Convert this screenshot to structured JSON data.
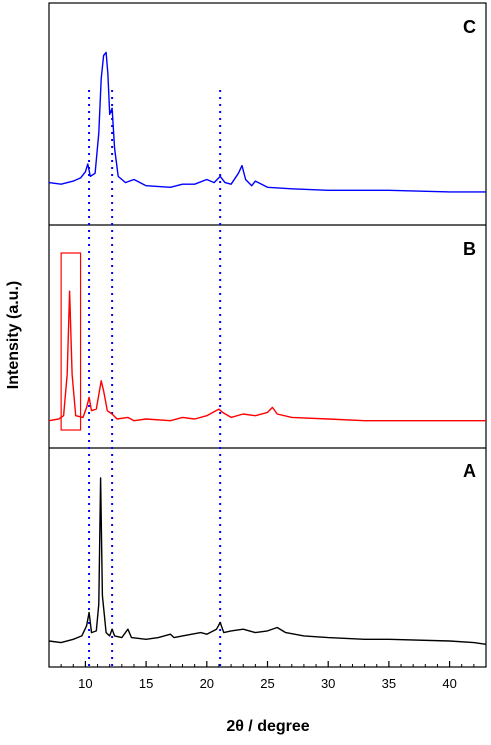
{
  "chart_data": {
    "type": "line",
    "xlabel": "2θ / degree",
    "ylabel": "Intensity (a.u.)",
    "xlim": [
      7,
      43
    ],
    "xticks": [
      10,
      15,
      20,
      25,
      30,
      35,
      40
    ],
    "xtick_labels": [
      "10",
      "15",
      "20",
      "25",
      "30",
      "35",
      "40"
    ],
    "reference_lines_x": [
      10.3,
      12.2,
      21.1
    ],
    "panels": [
      {
        "label": "C",
        "color": "#0000ff",
        "ylim": [
          0,
          100
        ],
        "points": [
          [
            7,
            8
          ],
          [
            8,
            7
          ],
          [
            9,
            9
          ],
          [
            9.6,
            11
          ],
          [
            10.0,
            15
          ],
          [
            10.2,
            20
          ],
          [
            10.4,
            12
          ],
          [
            10.8,
            14
          ],
          [
            11.1,
            40
          ],
          [
            11.3,
            75
          ],
          [
            11.5,
            90
          ],
          [
            11.7,
            92
          ],
          [
            11.85,
            78
          ],
          [
            12.0,
            52
          ],
          [
            12.2,
            56
          ],
          [
            12.4,
            30
          ],
          [
            12.7,
            12
          ],
          [
            13.3,
            8
          ],
          [
            14,
            10
          ],
          [
            15,
            6
          ],
          [
            17,
            5
          ],
          [
            18,
            7
          ],
          [
            19,
            7
          ],
          [
            20,
            10
          ],
          [
            20.6,
            8
          ],
          [
            21.1,
            12
          ],
          [
            21.5,
            8
          ],
          [
            22,
            7
          ],
          [
            22.6,
            14
          ],
          [
            22.9,
            19
          ],
          [
            23.2,
            10
          ],
          [
            23.7,
            6
          ],
          [
            24,
            9
          ],
          [
            25,
            5
          ],
          [
            27,
            4
          ],
          [
            30,
            3
          ],
          [
            35,
            3
          ],
          [
            40,
            2
          ],
          [
            43,
            2
          ]
        ]
      },
      {
        "label": "B",
        "color": "#ff0000",
        "ylim": [
          0,
          100
        ],
        "points": [
          [
            7,
            2
          ],
          [
            7.8,
            3
          ],
          [
            8.2,
            5
          ],
          [
            8.5,
            30
          ],
          [
            8.7,
            80
          ],
          [
            8.9,
            30
          ],
          [
            9.2,
            5
          ],
          [
            9.8,
            4
          ],
          [
            10.1,
            10
          ],
          [
            10.3,
            16
          ],
          [
            10.5,
            8
          ],
          [
            10.9,
            9
          ],
          [
            11.3,
            26
          ],
          [
            11.5,
            20
          ],
          [
            11.8,
            8
          ],
          [
            12.2,
            6
          ],
          [
            12.6,
            3
          ],
          [
            13.5,
            4
          ],
          [
            14,
            2
          ],
          [
            15,
            3
          ],
          [
            17,
            2
          ],
          [
            18,
            4
          ],
          [
            19,
            3
          ],
          [
            20,
            5
          ],
          [
            21,
            9
          ],
          [
            21.3,
            7
          ],
          [
            22,
            4
          ],
          [
            23,
            6
          ],
          [
            24,
            5
          ],
          [
            25,
            7
          ],
          [
            25.4,
            10
          ],
          [
            25.8,
            6
          ],
          [
            27,
            4
          ],
          [
            30,
            3
          ],
          [
            33,
            2
          ],
          [
            35,
            2
          ],
          [
            40,
            2
          ],
          [
            43,
            2
          ]
        ]
      },
      {
        "label": "A",
        "color": "#000000",
        "ylim": [
          0,
          100
        ],
        "points": [
          [
            7,
            3
          ],
          [
            8,
            2
          ],
          [
            9,
            4
          ],
          [
            9.7,
            6
          ],
          [
            10.1,
            12
          ],
          [
            10.3,
            20
          ],
          [
            10.5,
            8
          ],
          [
            10.9,
            9
          ],
          [
            11.1,
            25
          ],
          [
            11.25,
            100
          ],
          [
            11.4,
            30
          ],
          [
            11.7,
            8
          ],
          [
            12.0,
            6
          ],
          [
            12.2,
            10
          ],
          [
            12.4,
            6
          ],
          [
            13.0,
            5
          ],
          [
            13.5,
            10
          ],
          [
            13.8,
            5
          ],
          [
            15,
            4
          ],
          [
            16,
            5
          ],
          [
            17,
            7
          ],
          [
            17.3,
            5
          ],
          [
            18,
            6
          ],
          [
            19.5,
            8
          ],
          [
            20,
            7
          ],
          [
            20.8,
            10
          ],
          [
            21.1,
            14
          ],
          [
            21.4,
            8
          ],
          [
            22,
            9
          ],
          [
            23,
            10
          ],
          [
            24,
            8
          ],
          [
            25,
            9
          ],
          [
            25.8,
            11
          ],
          [
            26.5,
            8
          ],
          [
            28,
            6
          ],
          [
            30,
            5
          ],
          [
            33,
            4
          ],
          [
            35,
            4
          ],
          [
            40,
            3
          ],
          [
            42,
            2
          ],
          [
            43,
            1
          ]
        ]
      }
    ],
    "inset_box": {
      "panel": "B",
      "x_from": 8.0,
      "x_to": 9.6,
      "color": "#ff0000"
    }
  }
}
